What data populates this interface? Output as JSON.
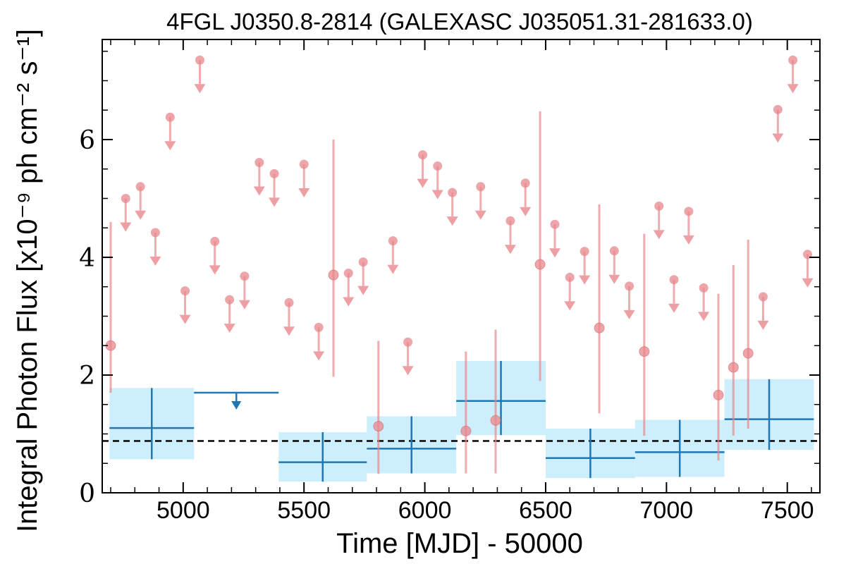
{
  "chart_data": {
    "type": "scatter",
    "title": "4FGL J0350.8-2814 (GALEXASC J035051.31-281633.0)",
    "xlabel": "Time [MJD] - 50000",
    "ylabel": "Integral Photon Flux [x10⁻⁹ ph cm⁻² s⁻¹]",
    "xlim": [
      4665,
      7635
    ],
    "ylim": [
      0,
      7.7
    ],
    "xticks": [
      5000,
      5500,
      6000,
      6500,
      7000,
      7500
    ],
    "yticks": [
      0,
      2,
      4,
      6
    ],
    "xtick_labels": [
      "5000",
      "5500",
      "6000",
      "6500",
      "7000",
      "7500"
    ],
    "ytick_labels": [
      "0",
      "2",
      "4",
      "6"
    ],
    "reference_line": 0.88,
    "colors": {
      "short_bins": "#e8878c",
      "long_bins": "#1f77b4",
      "long_bins_fill": "#cdeefc",
      "reference_line": "#000000"
    },
    "series": [
      {
        "kind": "short_bin_detections",
        "points": [
          {
            "x": 4700,
            "y": 2.5,
            "lo": 1.7,
            "hi": 4.6
          },
          {
            "x": 5622,
            "y": 3.7,
            "lo": 1.97,
            "hi": 6.0
          },
          {
            "x": 5808,
            "y": 1.13,
            "lo": 0.32,
            "hi": 2.58
          },
          {
            "x": 6170,
            "y": 1.05,
            "lo": 0.33,
            "hi": 2.4
          },
          {
            "x": 6293,
            "y": 1.23,
            "lo": 0.33,
            "hi": 2.77
          },
          {
            "x": 6477,
            "y": 3.88,
            "lo": 1.9,
            "hi": 6.48
          },
          {
            "x": 6722,
            "y": 2.8,
            "lo": 1.35,
            "hi": 4.9
          },
          {
            "x": 6908,
            "y": 2.4,
            "lo": 0.97,
            "hi": 4.4
          },
          {
            "x": 7215,
            "y": 1.66,
            "lo": 0.55,
            "hi": 3.38
          },
          {
            "x": 7277,
            "y": 2.13,
            "lo": 0.97,
            "hi": 3.87
          },
          {
            "x": 7338,
            "y": 2.37,
            "lo": 1.09,
            "hi": 4.3
          }
        ]
      },
      {
        "kind": "short_bin_upper_limits",
        "points": [
          {
            "x": 4762,
            "y": 5.0
          },
          {
            "x": 4823,
            "y": 5.2
          },
          {
            "x": 4885,
            "y": 4.42
          },
          {
            "x": 4946,
            "y": 6.38
          },
          {
            "x": 5008,
            "y": 3.43
          },
          {
            "x": 5069,
            "y": 7.35
          },
          {
            "x": 5131,
            "y": 4.27
          },
          {
            "x": 5192,
            "y": 3.28
          },
          {
            "x": 5254,
            "y": 3.68
          },
          {
            "x": 5315,
            "y": 5.61
          },
          {
            "x": 5377,
            "y": 5.42
          },
          {
            "x": 5438,
            "y": 3.23
          },
          {
            "x": 5500,
            "y": 5.58
          },
          {
            "x": 5561,
            "y": 2.81
          },
          {
            "x": 5684,
            "y": 3.73
          },
          {
            "x": 5745,
            "y": 3.92
          },
          {
            "x": 5868,
            "y": 4.28
          },
          {
            "x": 5930,
            "y": 2.56
          },
          {
            "x": 5991,
            "y": 5.74
          },
          {
            "x": 6053,
            "y": 5.55
          },
          {
            "x": 6114,
            "y": 5.1
          },
          {
            "x": 6231,
            "y": 5.2
          },
          {
            "x": 6354,
            "y": 4.62
          },
          {
            "x": 6416,
            "y": 5.26
          },
          {
            "x": 6538,
            "y": 4.56
          },
          {
            "x": 6600,
            "y": 3.66
          },
          {
            "x": 6661,
            "y": 4.1
          },
          {
            "x": 6784,
            "y": 4.11
          },
          {
            "x": 6846,
            "y": 3.51
          },
          {
            "x": 6969,
            "y": 4.87
          },
          {
            "x": 7031,
            "y": 3.62
          },
          {
            "x": 7092,
            "y": 4.78
          },
          {
            "x": 7154,
            "y": 3.48
          },
          {
            "x": 7400,
            "y": 3.33
          },
          {
            "x": 7461,
            "y": 6.51
          },
          {
            "x": 7523,
            "y": 7.35
          },
          {
            "x": 7584,
            "y": 4.05
          }
        ]
      },
      {
        "kind": "long_bins",
        "bins": [
          {
            "x0": 4695,
            "x1": 5045,
            "y": 1.1,
            "lo": 0.57,
            "hi": 1.78
          },
          {
            "x0": 5045,
            "x1": 5395,
            "y": 1.7,
            "upper_limit": true
          },
          {
            "x0": 5395,
            "x1": 5760,
            "y": 0.52,
            "lo": 0.19,
            "hi": 1.03
          },
          {
            "x0": 5760,
            "x1": 6130,
            "y": 0.75,
            "lo": 0.33,
            "hi": 1.3
          },
          {
            "x0": 6130,
            "x1": 6500,
            "y": 1.56,
            "lo": 0.98,
            "hi": 2.24
          },
          {
            "x0": 6500,
            "x1": 6870,
            "y": 0.59,
            "lo": 0.25,
            "hi": 1.09
          },
          {
            "x0": 6870,
            "x1": 7240,
            "y": 0.69,
            "lo": 0.27,
            "hi": 1.24
          },
          {
            "x0": 7240,
            "x1": 7610,
            "y": 1.25,
            "lo": 0.73,
            "hi": 1.93
          }
        ]
      }
    ]
  }
}
